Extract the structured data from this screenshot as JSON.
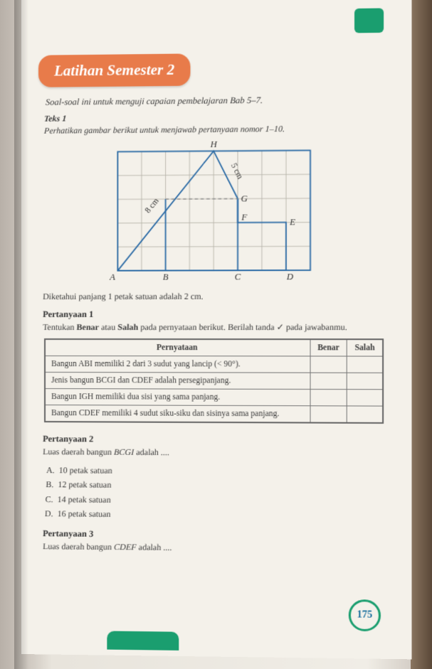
{
  "accent_orange": "#e87b4a",
  "accent_green": "#1a9e6f",
  "header_title": "Latihan Semester 2",
  "intro_text": "Soal-soal ini untuk menguji capaian pembelajaran Bab 5–7.",
  "teks_label": "Teks 1",
  "instruction": "Perhatikan gambar berikut untuk menjawab pertanyaan nomor 1–10.",
  "diagram": {
    "grid_cols": 8,
    "grid_rows": 5,
    "grid_color": "#b8b4aa",
    "outer_border_color": "#2a6aa5",
    "outer_border_width": 2,
    "line_color": "#2a6aa5",
    "line_width": 2,
    "dash_color": "#888",
    "points": {
      "A": [
        0,
        5
      ],
      "B": [
        2,
        5
      ],
      "C": [
        5,
        5
      ],
      "D": [
        7,
        5
      ],
      "E": [
        7,
        3
      ],
      "F": [
        5,
        3
      ],
      "G": [
        5,
        2
      ],
      "H": [
        4,
        0
      ],
      "I": [
        2,
        2
      ]
    },
    "polyline": [
      "A",
      "B",
      "C",
      "D",
      "E",
      "F",
      "G",
      "H",
      "A"
    ],
    "dashed_line": {
      "from": "I",
      "to": "G"
    },
    "labels": {
      "eight_cm": "8 cm",
      "five_cm": "5 cm"
    },
    "vertex_labels": [
      "A",
      "B",
      "C",
      "D",
      "E",
      "F",
      "G",
      "H"
    ]
  },
  "given": "Diketahui panjang 1 petak satuan adalah 2 cm.",
  "q1": {
    "title": "Pertanyaan 1",
    "body_pre": "Tentukan ",
    "body_bold1": "Benar",
    "body_mid": " atau ",
    "body_bold2": "Salah",
    "body_post": " pada pernyataan berikut. Berilah tanda ✓ pada jawabanmu.",
    "col_stmt": "Pernyataan",
    "col_true": "Benar",
    "col_false": "Salah",
    "rows": [
      "Bangun ABI memiliki 2 dari 3 sudut yang lancip (< 90°).",
      "Jenis bangun BCGI dan CDEF adalah persegipanjang.",
      "Bangun IGH memiliki dua sisi yang sama panjang.",
      "Bangun CDEF memiliki 4 sudut siku-siku dan sisinya sama panjang."
    ]
  },
  "q2": {
    "title": "Pertanyaan 2",
    "prompt": "Luas daerah bangun BCGI adalah ....",
    "options": {
      "A": "10 petak satuan",
      "B": "12 petak satuan",
      "C": "14 petak satuan",
      "D": "16 petak satuan"
    }
  },
  "q3": {
    "title": "Pertanyaan 3",
    "prompt": "Luas daerah bangun CDEF adalah ...."
  },
  "page_number": "175"
}
